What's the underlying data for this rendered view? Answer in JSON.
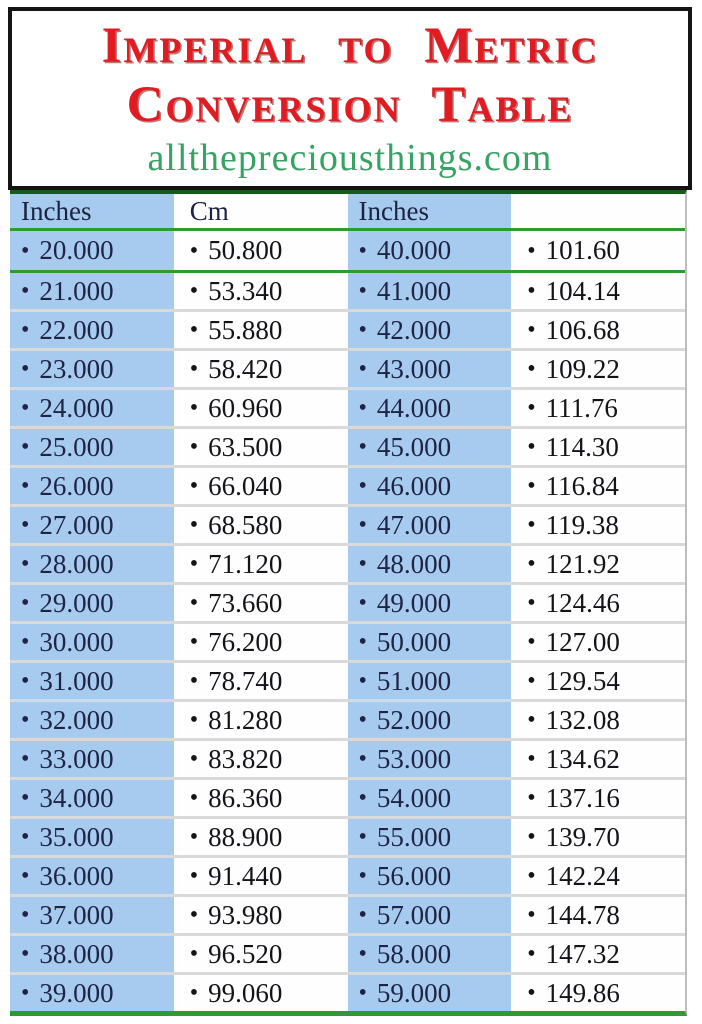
{
  "header": {
    "title_line1": "Imperial to Metric",
    "title_line2": "Conversion Table",
    "website": "allthepreciousthings.com"
  },
  "table": {
    "columns": [
      "Inches",
      "Cm",
      "Inches",
      ""
    ],
    "bullet": "•",
    "rows": [
      [
        "20.000",
        "50.800",
        "40.000",
        "101.60"
      ],
      [
        "21.000",
        "53.340",
        "41.000",
        "104.14"
      ],
      [
        "22.000",
        "55.880",
        "42.000",
        "106.68"
      ],
      [
        "23.000",
        "58.420",
        "43.000",
        "109.22"
      ],
      [
        "24.000",
        "60.960",
        "44.000",
        "111.76"
      ],
      [
        "25.000",
        "63.500",
        "45.000",
        "114.30"
      ],
      [
        "26.000",
        "66.040",
        "46.000",
        "116.84"
      ],
      [
        "27.000",
        "68.580",
        "47.000",
        "119.38"
      ],
      [
        "28.000",
        "71.120",
        "48.000",
        "121.92"
      ],
      [
        "29.000",
        "73.660",
        "49.000",
        "124.46"
      ],
      [
        "30.000",
        "76.200",
        "50.000",
        "127.00"
      ],
      [
        "31.000",
        "78.740",
        "51.000",
        "129.54"
      ],
      [
        "32.000",
        "81.280",
        "52.000",
        "132.08"
      ],
      [
        "33.000",
        "83.820",
        "53.000",
        "134.62"
      ],
      [
        "34.000",
        "86.360",
        "54.000",
        "137.16"
      ],
      [
        "35.000",
        "88.900",
        "55.000",
        "139.70"
      ],
      [
        "36.000",
        "91.440",
        "56.000",
        "142.24"
      ],
      [
        "37.000",
        "93.980",
        "57.000",
        "144.78"
      ],
      [
        "38.000",
        "96.520",
        "58.000",
        "147.32"
      ],
      [
        "39.000",
        "99.060",
        "59.000",
        "149.86"
      ]
    ]
  },
  "colors": {
    "title_red": "#e01b22",
    "website_green": "#38a264",
    "grid_line_green": "#2e9b32",
    "table_top_green": "#145c18",
    "column_blue": "#a7cbee",
    "text_navy": "#1e2448",
    "text_black": "#131318"
  }
}
